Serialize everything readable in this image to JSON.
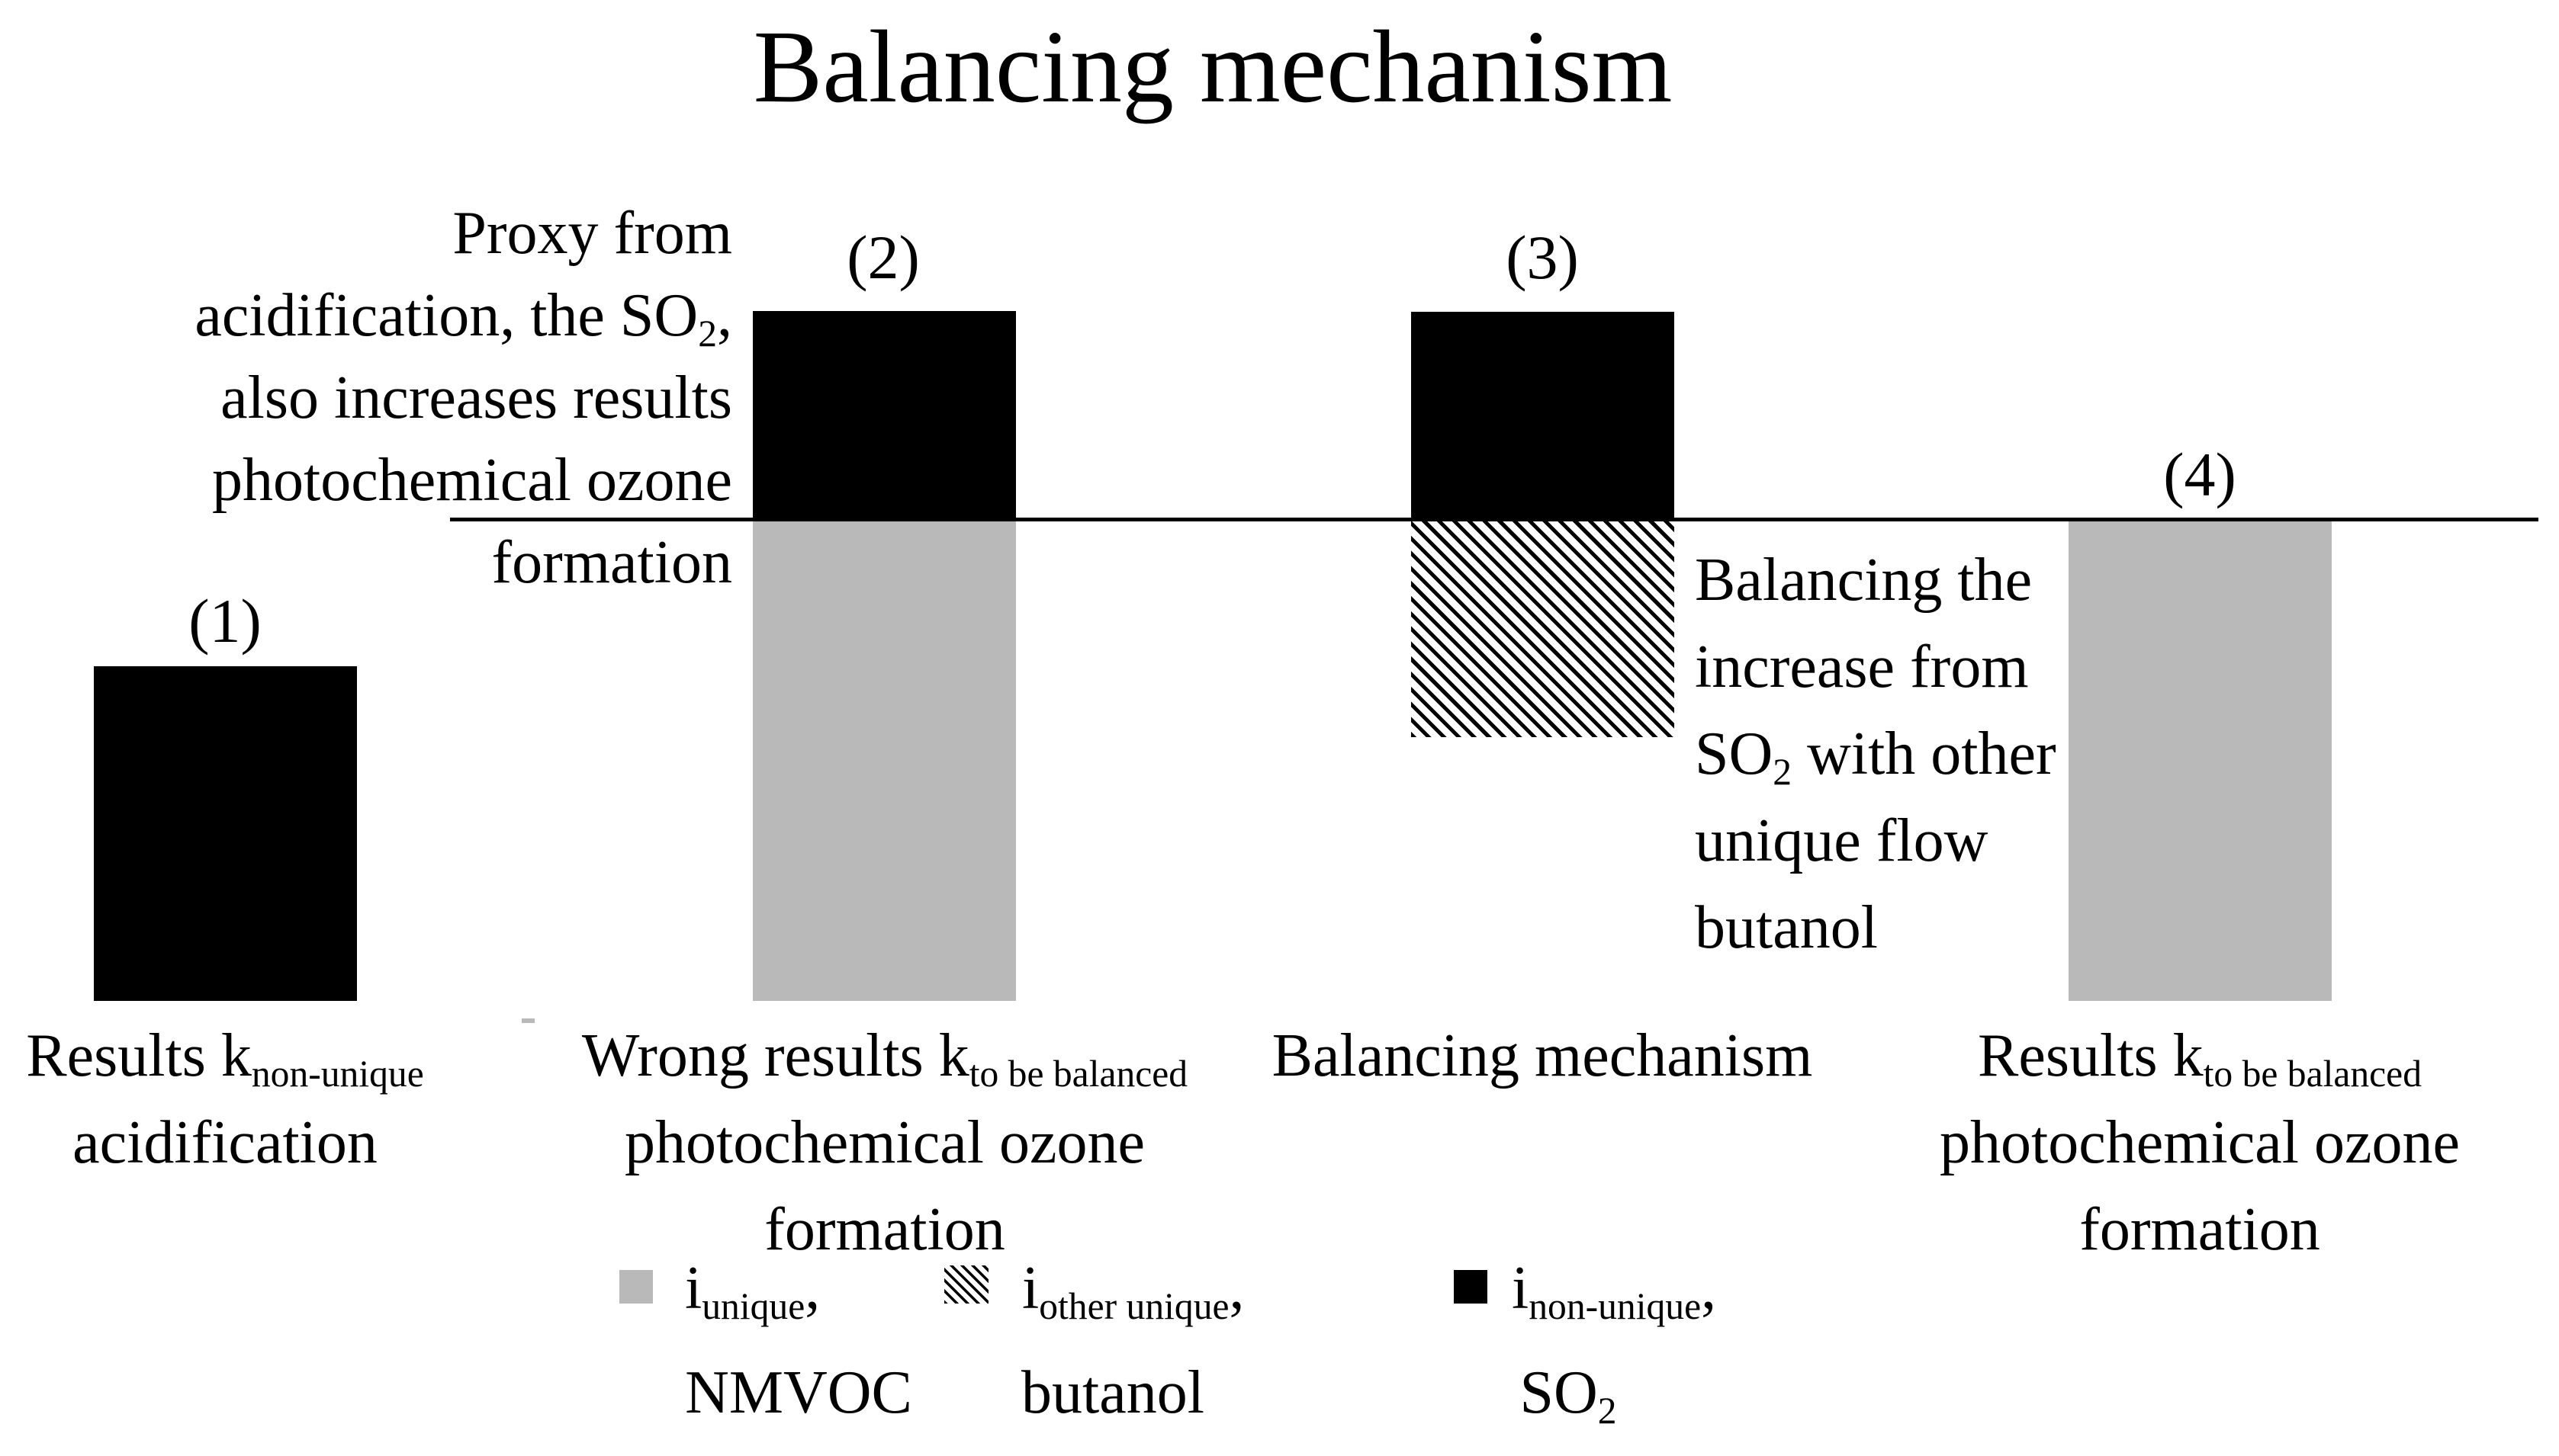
{
  "title": "Balancing mechanism",
  "colors": {
    "bar_gray": "#b9b9b9",
    "bar_black": "#000000",
    "background": "#ffffff"
  },
  "intro_note": {
    "lines": [
      {
        "pre": "Proxy from",
        "sub": "",
        "post": ""
      },
      {
        "pre": "acidification, the SO",
        "sub": "2",
        "post": ","
      },
      {
        "pre": "also increases results",
        "sub": "",
        "post": ""
      },
      {
        "pre": "photochemical ozone",
        "sub": "",
        "post": ""
      },
      {
        "pre": "formation",
        "sub": "",
        "post": ""
      }
    ]
  },
  "annotation_note": {
    "lines": [
      {
        "pre": "Balancing the",
        "sub": "",
        "post": ""
      },
      {
        "pre": "increase from",
        "sub": "",
        "post": ""
      },
      {
        "pre": "SO",
        "sub": "2",
        "post": " with other"
      },
      {
        "pre": "unique flow",
        "sub": "",
        "post": ""
      },
      {
        "pre": "butanol",
        "sub": "",
        "post": ""
      }
    ]
  },
  "bars": [
    {
      "index_label": "(1)",
      "segments": [
        {
          "fill": "black",
          "position": "above caption, no baseline"
        }
      ],
      "caption_lines": [
        {
          "pre": "Results k",
          "sub": "non-unique",
          "post": ""
        },
        {
          "pre": "acidification",
          "sub": "",
          "post": ""
        }
      ]
    },
    {
      "index_label": "(2)",
      "segments": [
        {
          "fill": "black",
          "position": "above baseline"
        },
        {
          "fill": "gray",
          "position": "below baseline"
        }
      ],
      "caption_lines": [
        {
          "pre": "Wrong results k",
          "sub": "to be balanced",
          "post": ""
        },
        {
          "pre": "photochemical ozone",
          "sub": "",
          "post": ""
        },
        {
          "pre": "formation",
          "sub": "",
          "post": ""
        }
      ]
    },
    {
      "index_label": "(3)",
      "segments": [
        {
          "fill": "black",
          "position": "above baseline"
        },
        {
          "fill": "hatched",
          "position": "below baseline"
        }
      ],
      "caption_lines": [
        {
          "pre": "Balancing mechanism",
          "sub": "",
          "post": ""
        }
      ]
    },
    {
      "index_label": "(4)",
      "segments": [
        {
          "fill": "gray",
          "position": "below baseline"
        }
      ],
      "caption_lines": [
        {
          "pre": "Results k",
          "sub": "to be balanced",
          "post": ""
        },
        {
          "pre": "photochemical ozone",
          "sub": "",
          "post": ""
        },
        {
          "pre": "formation",
          "sub": "",
          "post": ""
        }
      ]
    }
  ],
  "legend": {
    "items": [
      {
        "swatch": "gray-square",
        "symbol": {
          "pre": "i",
          "sub": "unique",
          "post": ","
        },
        "substance": {
          "pre": "NMVOC",
          "sub": "",
          "post": ""
        }
      },
      {
        "swatch": "hatched-square",
        "symbol": {
          "pre": "i",
          "sub": "other unique",
          "post": ","
        },
        "substance": {
          "pre": "butanol",
          "sub": "",
          "post": ""
        }
      },
      {
        "swatch": "black-square",
        "symbol": {
          "pre": "i",
          "sub": "non-unique",
          "post": ","
        },
        "substance": {
          "pre": "SO",
          "sub": "2",
          "post": ""
        }
      }
    ]
  }
}
